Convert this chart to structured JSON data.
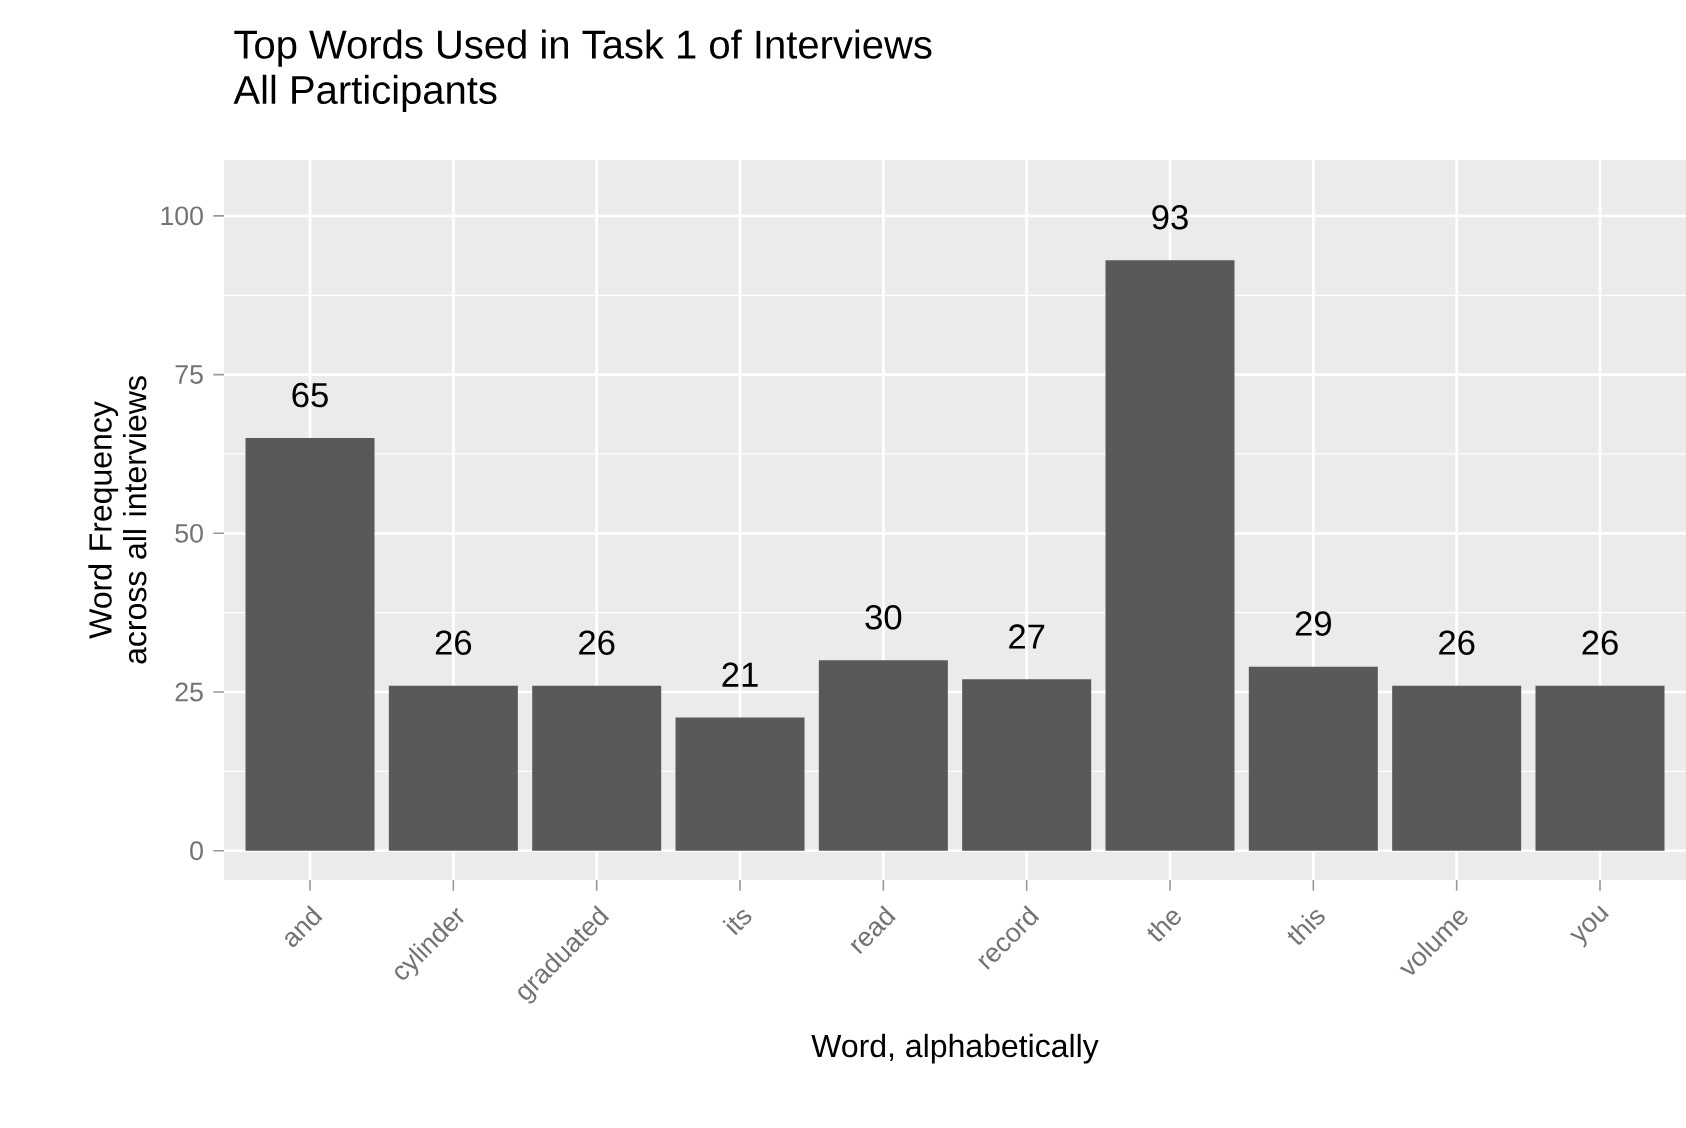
{
  "chart_data": {
    "type": "bar",
    "title": "Top Words Used in Task 1 of Interviews",
    "subtitle": "All Participants",
    "xlabel": "Word, alphabetically",
    "ylabel": "Word Frequency across all interviews",
    "categories": [
      "and",
      "cylinder",
      "graduated",
      "its",
      "read",
      "record",
      "the",
      "this",
      "volume",
      "you"
    ],
    "values": [
      65,
      26,
      26,
      21,
      30,
      27,
      93,
      29,
      26,
      26
    ],
    "color": "#595959",
    "data_labels": true,
    "ylim": [
      -4.6,
      108.8
    ],
    "yticks": [
      0,
      25,
      50,
      75,
      100
    ],
    "grid": true
  }
}
